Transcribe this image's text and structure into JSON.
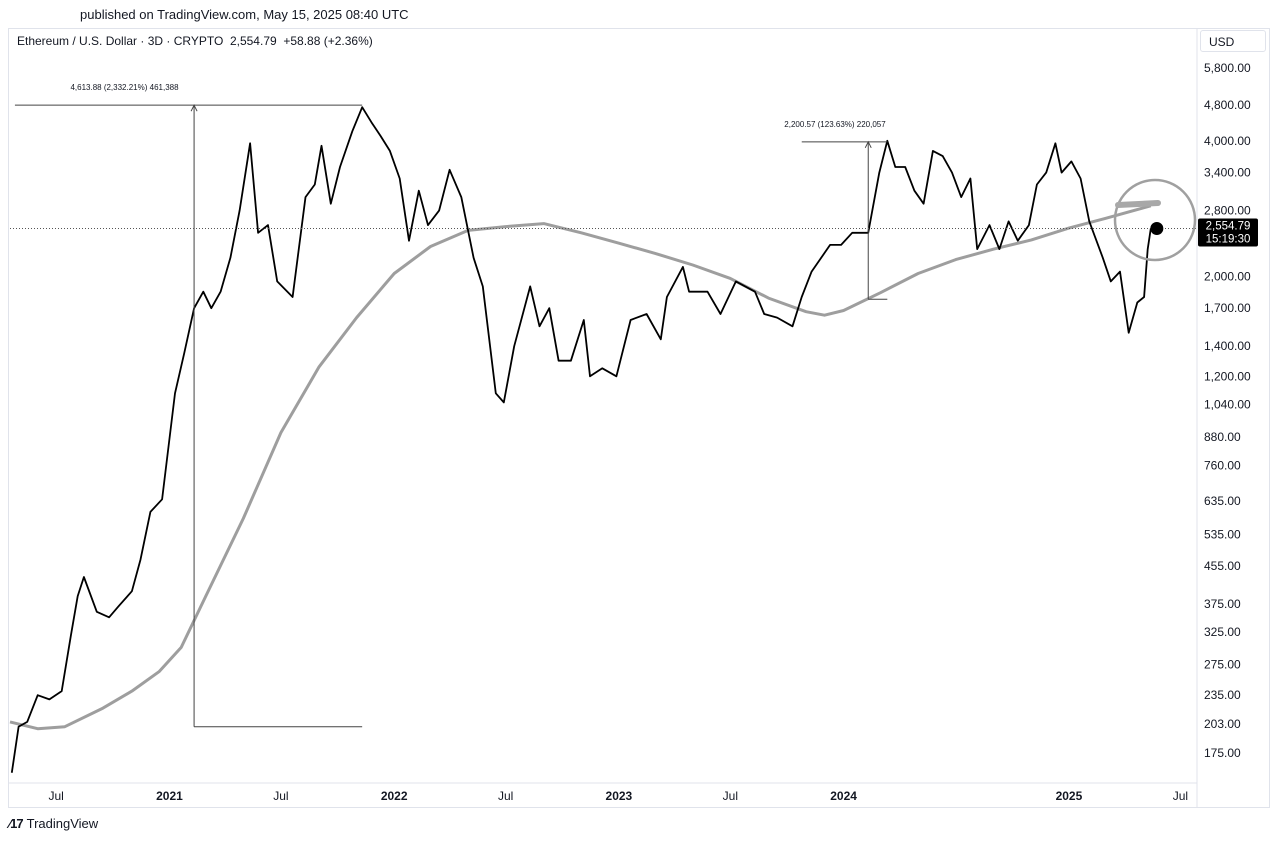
{
  "header": {
    "published": "published on TradingView.com, May 15, 2025 08:40 UTC",
    "symbol": "Ethereum / U.S. Dollar · 3D · CRYPTO",
    "last": "2,554.79",
    "change": "+58.88 (+2.36%)"
  },
  "currency_button": "USD",
  "footer": {
    "brand": "TradingView"
  },
  "colors": {
    "price": "#000000",
    "ma": "#9e9e9e",
    "grid": "#e0e3eb",
    "tag_bg": "#000000"
  },
  "chart_data": {
    "type": "line",
    "y_scale": "log",
    "ylim": [
      150,
      6300
    ],
    "xlim": [
      "2020-04-17",
      "2025-07-28"
    ],
    "y_ticks": [
      {
        "value": 5800,
        "label": "5,800.00"
      },
      {
        "value": 4800,
        "label": "4,800.00"
      },
      {
        "value": 4000,
        "label": "4,000.00"
      },
      {
        "value": 3400,
        "label": "3,400.00"
      },
      {
        "value": 2800,
        "label": "2,800.00"
      },
      {
        "value": 2000,
        "label": "2,000.00"
      },
      {
        "value": 1700,
        "label": "1,700.00"
      },
      {
        "value": 1400,
        "label": "1,400.00"
      },
      {
        "value": 1200,
        "label": "1,200.00"
      },
      {
        "value": 1040,
        "label": "1,040.00"
      },
      {
        "value": 880,
        "label": "880.00"
      },
      {
        "value": 760,
        "label": "760.00"
      },
      {
        "value": 635,
        "label": "635.00"
      },
      {
        "value": 535,
        "label": "535.00"
      },
      {
        "value": 455,
        "label": "455.00"
      },
      {
        "value": 375,
        "label": "375.00"
      },
      {
        "value": 325,
        "label": "325.00"
      },
      {
        "value": 275,
        "label": "275.00"
      },
      {
        "value": 235,
        "label": "235.00"
      },
      {
        "value": 203,
        "label": "203.00"
      },
      {
        "value": 175,
        "label": "175.00"
      }
    ],
    "x_ticks": [
      {
        "date": "2020-07-01",
        "label": "Jul",
        "bold": false
      },
      {
        "date": "2021-01-01",
        "label": "2021",
        "bold": true
      },
      {
        "date": "2021-07-01",
        "label": "Jul",
        "bold": false
      },
      {
        "date": "2022-01-01",
        "label": "2022",
        "bold": true
      },
      {
        "date": "2022-07-01",
        "label": "Jul",
        "bold": false
      },
      {
        "date": "2023-01-01",
        "label": "2023",
        "bold": true
      },
      {
        "date": "2023-07-01",
        "label": "Jul",
        "bold": false
      },
      {
        "date": "2024-01-01",
        "label": "2024",
        "bold": true
      },
      {
        "date": "2025-01-01",
        "label": "2025",
        "bold": true
      },
      {
        "date": "2025-07-01",
        "label": "Jul",
        "bold": false
      }
    ],
    "series": [
      {
        "role": "price",
        "points": [
          [
            "2020-04-20",
            158
          ],
          [
            "2020-05-01",
            200
          ],
          [
            "2020-05-15",
            205
          ],
          [
            "2020-06-01",
            235
          ],
          [
            "2020-06-20",
            230
          ],
          [
            "2020-07-10",
            240
          ],
          [
            "2020-07-25",
            320
          ],
          [
            "2020-08-05",
            390
          ],
          [
            "2020-08-15",
            430
          ],
          [
            "2020-09-05",
            360
          ],
          [
            "2020-09-25",
            350
          ],
          [
            "2020-10-10",
            370
          ],
          [
            "2020-11-01",
            400
          ],
          [
            "2020-11-15",
            470
          ],
          [
            "2020-12-01",
            600
          ],
          [
            "2020-12-20",
            640
          ],
          [
            "2021-01-10",
            1100
          ],
          [
            "2021-01-25",
            1350
          ],
          [
            "2021-02-10",
            1700
          ],
          [
            "2021-02-25",
            1850
          ],
          [
            "2021-03-10",
            1700
          ],
          [
            "2021-03-25",
            1850
          ],
          [
            "2021-04-10",
            2200
          ],
          [
            "2021-04-25",
            2800
          ],
          [
            "2021-05-12",
            3950
          ],
          [
            "2021-05-25",
            2500
          ],
          [
            "2021-06-10",
            2600
          ],
          [
            "2021-06-25",
            1950
          ],
          [
            "2021-07-20",
            1800
          ],
          [
            "2021-08-10",
            3000
          ],
          [
            "2021-08-25",
            3200
          ],
          [
            "2021-09-05",
            3900
          ],
          [
            "2021-09-20",
            2900
          ],
          [
            "2021-10-05",
            3500
          ],
          [
            "2021-10-25",
            4200
          ],
          [
            "2021-11-10",
            4750
          ],
          [
            "2021-11-25",
            4400
          ],
          [
            "2021-12-10",
            4100
          ],
          [
            "2021-12-25",
            3800
          ],
          [
            "2022-01-10",
            3300
          ],
          [
            "2022-01-25",
            2400
          ],
          [
            "2022-02-10",
            3100
          ],
          [
            "2022-02-25",
            2600
          ],
          [
            "2022-03-15",
            2800
          ],
          [
            "2022-04-01",
            3450
          ],
          [
            "2022-04-20",
            3000
          ],
          [
            "2022-05-10",
            2200
          ],
          [
            "2022-05-25",
            1900
          ],
          [
            "2022-06-15",
            1100
          ],
          [
            "2022-06-28",
            1050
          ],
          [
            "2022-07-15",
            1400
          ],
          [
            "2022-08-10",
            1900
          ],
          [
            "2022-08-25",
            1550
          ],
          [
            "2022-09-10",
            1700
          ],
          [
            "2022-09-25",
            1300
          ],
          [
            "2022-10-15",
            1300
          ],
          [
            "2022-11-05",
            1600
          ],
          [
            "2022-11-15",
            1200
          ],
          [
            "2022-12-05",
            1250
          ],
          [
            "2022-12-28",
            1200
          ],
          [
            "2023-01-20",
            1600
          ],
          [
            "2023-02-15",
            1650
          ],
          [
            "2023-03-10",
            1450
          ],
          [
            "2023-03-20",
            1800
          ],
          [
            "2023-04-15",
            2100
          ],
          [
            "2023-04-25",
            1850
          ],
          [
            "2023-05-25",
            1850
          ],
          [
            "2023-06-15",
            1650
          ],
          [
            "2023-07-10",
            1950
          ],
          [
            "2023-08-10",
            1850
          ],
          [
            "2023-08-25",
            1650
          ],
          [
            "2023-09-15",
            1620
          ],
          [
            "2023-10-10",
            1550
          ],
          [
            "2023-10-25",
            1800
          ],
          [
            "2023-11-10",
            2050
          ],
          [
            "2023-12-10",
            2350
          ],
          [
            "2023-12-28",
            2350
          ],
          [
            "2024-01-15",
            2500
          ],
          [
            "2024-02-10",
            2500
          ],
          [
            "2024-02-28",
            3400
          ],
          [
            "2024-03-12",
            4000
          ],
          [
            "2024-03-25",
            3500
          ],
          [
            "2024-04-10",
            3500
          ],
          [
            "2024-04-25",
            3100
          ],
          [
            "2024-05-10",
            2900
          ],
          [
            "2024-05-25",
            3800
          ],
          [
            "2024-06-10",
            3700
          ],
          [
            "2024-06-25",
            3400
          ],
          [
            "2024-07-10",
            3000
          ],
          [
            "2024-07-25",
            3300
          ],
          [
            "2024-08-05",
            2300
          ],
          [
            "2024-08-25",
            2600
          ],
          [
            "2024-09-10",
            2300
          ],
          [
            "2024-09-25",
            2650
          ],
          [
            "2024-10-10",
            2400
          ],
          [
            "2024-10-28",
            2600
          ],
          [
            "2024-11-10",
            3200
          ],
          [
            "2024-11-25",
            3400
          ],
          [
            "2024-12-10",
            3950
          ],
          [
            "2024-12-20",
            3400
          ],
          [
            "2025-01-05",
            3600
          ],
          [
            "2025-01-20",
            3300
          ],
          [
            "2025-02-03",
            2650
          ],
          [
            "2025-02-25",
            2200
          ],
          [
            "2025-03-10",
            1950
          ],
          [
            "2025-03-25",
            2050
          ],
          [
            "2025-04-08",
            1500
          ],
          [
            "2025-04-22",
            1750
          ],
          [
            "2025-05-03",
            1800
          ],
          [
            "2025-05-09",
            2300
          ],
          [
            "2025-05-14",
            2554.79
          ]
        ]
      },
      {
        "role": "ma",
        "points": [
          [
            "2020-04-17",
            205
          ],
          [
            "2020-06-01",
            198
          ],
          [
            "2020-07-15",
            200
          ],
          [
            "2020-09-15",
            220
          ],
          [
            "2020-11-01",
            240
          ],
          [
            "2020-12-15",
            265
          ],
          [
            "2021-01-20",
            300
          ],
          [
            "2021-03-01",
            390
          ],
          [
            "2021-05-01",
            580
          ],
          [
            "2021-07-01",
            900
          ],
          [
            "2021-09-01",
            1260
          ],
          [
            "2021-11-01",
            1620
          ],
          [
            "2022-01-01",
            2030
          ],
          [
            "2022-03-01",
            2330
          ],
          [
            "2022-05-01",
            2530
          ],
          [
            "2022-07-01",
            2580
          ],
          [
            "2022-09-01",
            2620
          ],
          [
            "2022-11-01",
            2500
          ],
          [
            "2023-01-01",
            2370
          ],
          [
            "2023-03-01",
            2250
          ],
          [
            "2023-05-01",
            2120
          ],
          [
            "2023-07-01",
            1980
          ],
          [
            "2023-09-01",
            1790
          ],
          [
            "2023-11-01",
            1670
          ],
          [
            "2023-12-01",
            1640
          ],
          [
            "2024-01-01",
            1680
          ],
          [
            "2024-03-01",
            1840
          ],
          [
            "2024-05-01",
            2030
          ],
          [
            "2024-07-01",
            2180
          ],
          [
            "2024-09-01",
            2300
          ],
          [
            "2024-11-01",
            2410
          ],
          [
            "2025-01-01",
            2560
          ],
          [
            "2025-03-01",
            2690
          ],
          [
            "2025-05-14",
            2870
          ]
        ]
      }
    ],
    "annotations": [
      {
        "text": "4,613.88 (2,332.21%) 461,388",
        "from": [
          "2021-02-10",
          200
        ],
        "to": [
          "2021-11-10",
          4800
        ],
        "left": "2020-04-25"
      },
      {
        "text": "2,200.57 (123.63%) 220,057",
        "from": [
          "2024-02-10",
          1780
        ],
        "to": [
          "2024-03-12",
          3980
        ],
        "left": "2023-10-25"
      }
    ],
    "last_price": {
      "value": 2554.79,
      "label": "2,554.79",
      "countdown": "15:19:30"
    }
  }
}
